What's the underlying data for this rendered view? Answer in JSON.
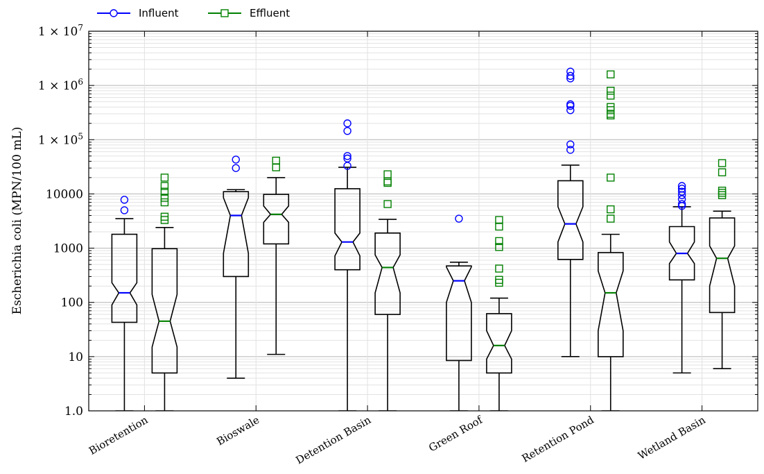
{
  "chart_data": {
    "type": "boxplot",
    "title": "",
    "xlabel": "",
    "ylabel": "Escherichia coli (MPN/100 mL)",
    "yscale": "log",
    "ylim": [
      1,
      10000000
    ],
    "yticks": [
      {
        "value": 1,
        "label": "1.0"
      },
      {
        "value": 10,
        "label": "10"
      },
      {
        "value": 100,
        "label": "100"
      },
      {
        "value": 1000,
        "label": "1000"
      },
      {
        "value": 10000,
        "label": "10000"
      },
      {
        "value": 100000,
        "label": "1 × 10^5"
      },
      {
        "value": 1000000,
        "label": "1 × 10^6"
      },
      {
        "value": 10000000,
        "label": "1 × 10^7"
      }
    ],
    "grid": true,
    "notched": true,
    "legend_position": "top-left, outside plot",
    "categories": [
      "Bioretention",
      "Bioswale",
      "Detention Basin",
      "Green Roof",
      "Retention Pond",
      "Wetland Basin"
    ],
    "series": [
      {
        "name": "Influent",
        "color": "#0000ff",
        "marker": "circle",
        "boxes": [
          {
            "whislo": 0.2,
            "q1": 43,
            "notch_lo": 90,
            "med": 150,
            "notch_hi": 230,
            "q3": 1800,
            "whishi": 3500,
            "fliers": [
              5000,
              7800
            ]
          },
          {
            "whislo": 4,
            "q1": 300,
            "notch_lo": 800,
            "med": 4000,
            "notch_hi": 8500,
            "q3": 11000,
            "whishi": 12000,
            "fliers": [
              30000,
              43000
            ]
          },
          {
            "whislo": 0.2,
            "q1": 400,
            "notch_lo": 720,
            "med": 1300,
            "notch_hi": 1900,
            "q3": 12500,
            "whishi": 31000,
            "fliers": [
              33000,
              45000,
              50000,
              145000,
              200000
            ]
          },
          {
            "whislo": 0.2,
            "q1": 8.5,
            "notch_lo": 100,
            "med": 250,
            "notch_hi": 450,
            "q3": 470,
            "whishi": 550,
            "fliers": [
              3500
            ]
          },
          {
            "whislo": 10,
            "q1": 620,
            "notch_lo": 1300,
            "med": 2800,
            "notch_hi": 5800,
            "q3": 17500,
            "whishi": 34000,
            "fliers": [
              65000,
              82000,
              350000,
              420000,
              450000,
              1350000,
              1500000,
              1800000
            ]
          },
          {
            "whislo": 5,
            "q1": 260,
            "notch_lo": 520,
            "med": 800,
            "notch_hi": 1300,
            "q3": 2500,
            "whishi": 5800,
            "fliers": [
              6000,
              6500,
              8000,
              9500,
              11000,
              12500,
              14000
            ]
          }
        ]
      },
      {
        "name": "Effluent",
        "color": "#008000",
        "marker": "square",
        "boxes": [
          {
            "whislo": 0.2,
            "q1": 5,
            "notch_lo": 15,
            "med": 45,
            "notch_hi": 140,
            "q3": 980,
            "whishi": 2400,
            "fliers": [
              3300,
              3800,
              7000,
              8500,
              11000,
              14000,
              20000
            ]
          },
          {
            "whislo": 11,
            "q1": 1200,
            "notch_lo": 3000,
            "med": 4200,
            "notch_hi": 6000,
            "q3": 9800,
            "whishi": 20000,
            "fliers": [
              31000,
              41000
            ]
          },
          {
            "whislo": 0.2,
            "q1": 60,
            "notch_lo": 150,
            "med": 440,
            "notch_hi": 750,
            "q3": 1900,
            "whishi": 3400,
            "fliers": [
              6500,
              16000,
              17000,
              23000
            ]
          },
          {
            "whislo": 0.2,
            "q1": 5,
            "notch_lo": 9,
            "med": 16,
            "notch_hi": 30,
            "q3": 62,
            "whishi": 120,
            "fliers": [
              230,
              260,
              420,
              1050,
              1350,
              2500,
              3300
            ]
          },
          {
            "whislo": 0.2,
            "q1": 10,
            "notch_lo": 30,
            "med": 150,
            "notch_hi": 380,
            "q3": 830,
            "whishi": 1800,
            "fliers": [
              3500,
              5200,
              20000,
              280000,
              300000,
              350000,
              400000,
              650000,
              800000,
              1600000
            ]
          },
          {
            "whislo": 6,
            "q1": 65,
            "notch_lo": 200,
            "med": 650,
            "notch_hi": 1100,
            "q3": 3600,
            "whishi": 4800,
            "fliers": [
              9500,
              10500,
              11500,
              25000,
              37000
            ]
          }
        ]
      }
    ]
  }
}
